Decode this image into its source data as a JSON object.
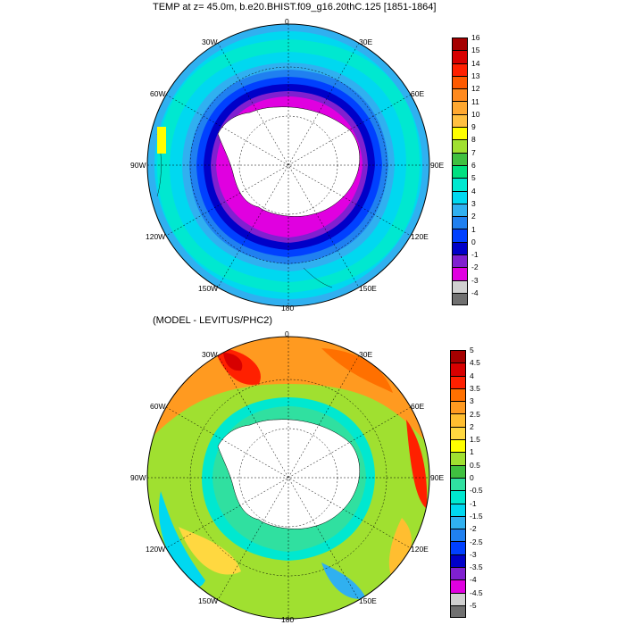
{
  "top_panel": {
    "title": "TEMP at z=  45.0m, b.e20.BHIST.f09_g16.20thC.125 [1851-1864]",
    "lon_labels": {
      "n": "0",
      "ne1": "30E",
      "ne2": "60E",
      "e": "90E",
      "se2": "120E",
      "se1": "150E",
      "s": "180",
      "sw1": "150W",
      "sw2": "120W",
      "w": "90W",
      "nw2": "60W",
      "nw1": "30W"
    },
    "colorbar": {
      "labels": [
        "16",
        "15",
        "14",
        "13",
        "12",
        "11",
        "10",
        "9",
        "8",
        "7",
        "6",
        "5",
        "4",
        "3",
        "2",
        "1",
        "0",
        "-1",
        "-2",
        "-3",
        "-4"
      ],
      "colors": [
        "#a50000",
        "#d70000",
        "#ff2000",
        "#ff5a00",
        "#ff8a1e",
        "#ffa830",
        "#ffc040",
        "#ffff00",
        "#a0e030",
        "#40c040",
        "#00e080",
        "#00e8d0",
        "#00d8f0",
        "#30b0f0",
        "#2080f0",
        "#0040ff",
        "#0000c8",
        "#8020d0",
        "#e000e0",
        "#d0d0d0",
        "#707070"
      ]
    }
  },
  "bottom_panel": {
    "title": "(MODEL - LEVITUS/PHC2)",
    "lon_labels": {
      "n": "0",
      "ne1": "30E",
      "ne2": "60E",
      "e": "90E",
      "se2": "120E",
      "se1": "150E",
      "s": "180",
      "sw1": "150W",
      "sw2": "120W",
      "w": "90W",
      "nw2": "60W",
      "nw1": "30W"
    },
    "colorbar": {
      "labels": [
        "5",
        "4.5",
        "4",
        "3.5",
        "3",
        "2.5",
        "2",
        "1.5",
        "1",
        "0.5",
        "0",
        "-0.5",
        "-1",
        "-1.5",
        "-2",
        "-2.5",
        "-3",
        "-3.5",
        "-4",
        "-4.5",
        "-5"
      ],
      "colors": [
        "#a50000",
        "#d70000",
        "#ff2000",
        "#ff7000",
        "#ff9a20",
        "#ffbe30",
        "#ffd840",
        "#ffff00",
        "#a0e030",
        "#40c040",
        "#30e0a0",
        "#00e8d0",
        "#00d8f0",
        "#30b0f0",
        "#2080f0",
        "#0040ff",
        "#0000c8",
        "#8020d0",
        "#e000e0",
        "#d0d0d0",
        "#707070"
      ]
    }
  }
}
